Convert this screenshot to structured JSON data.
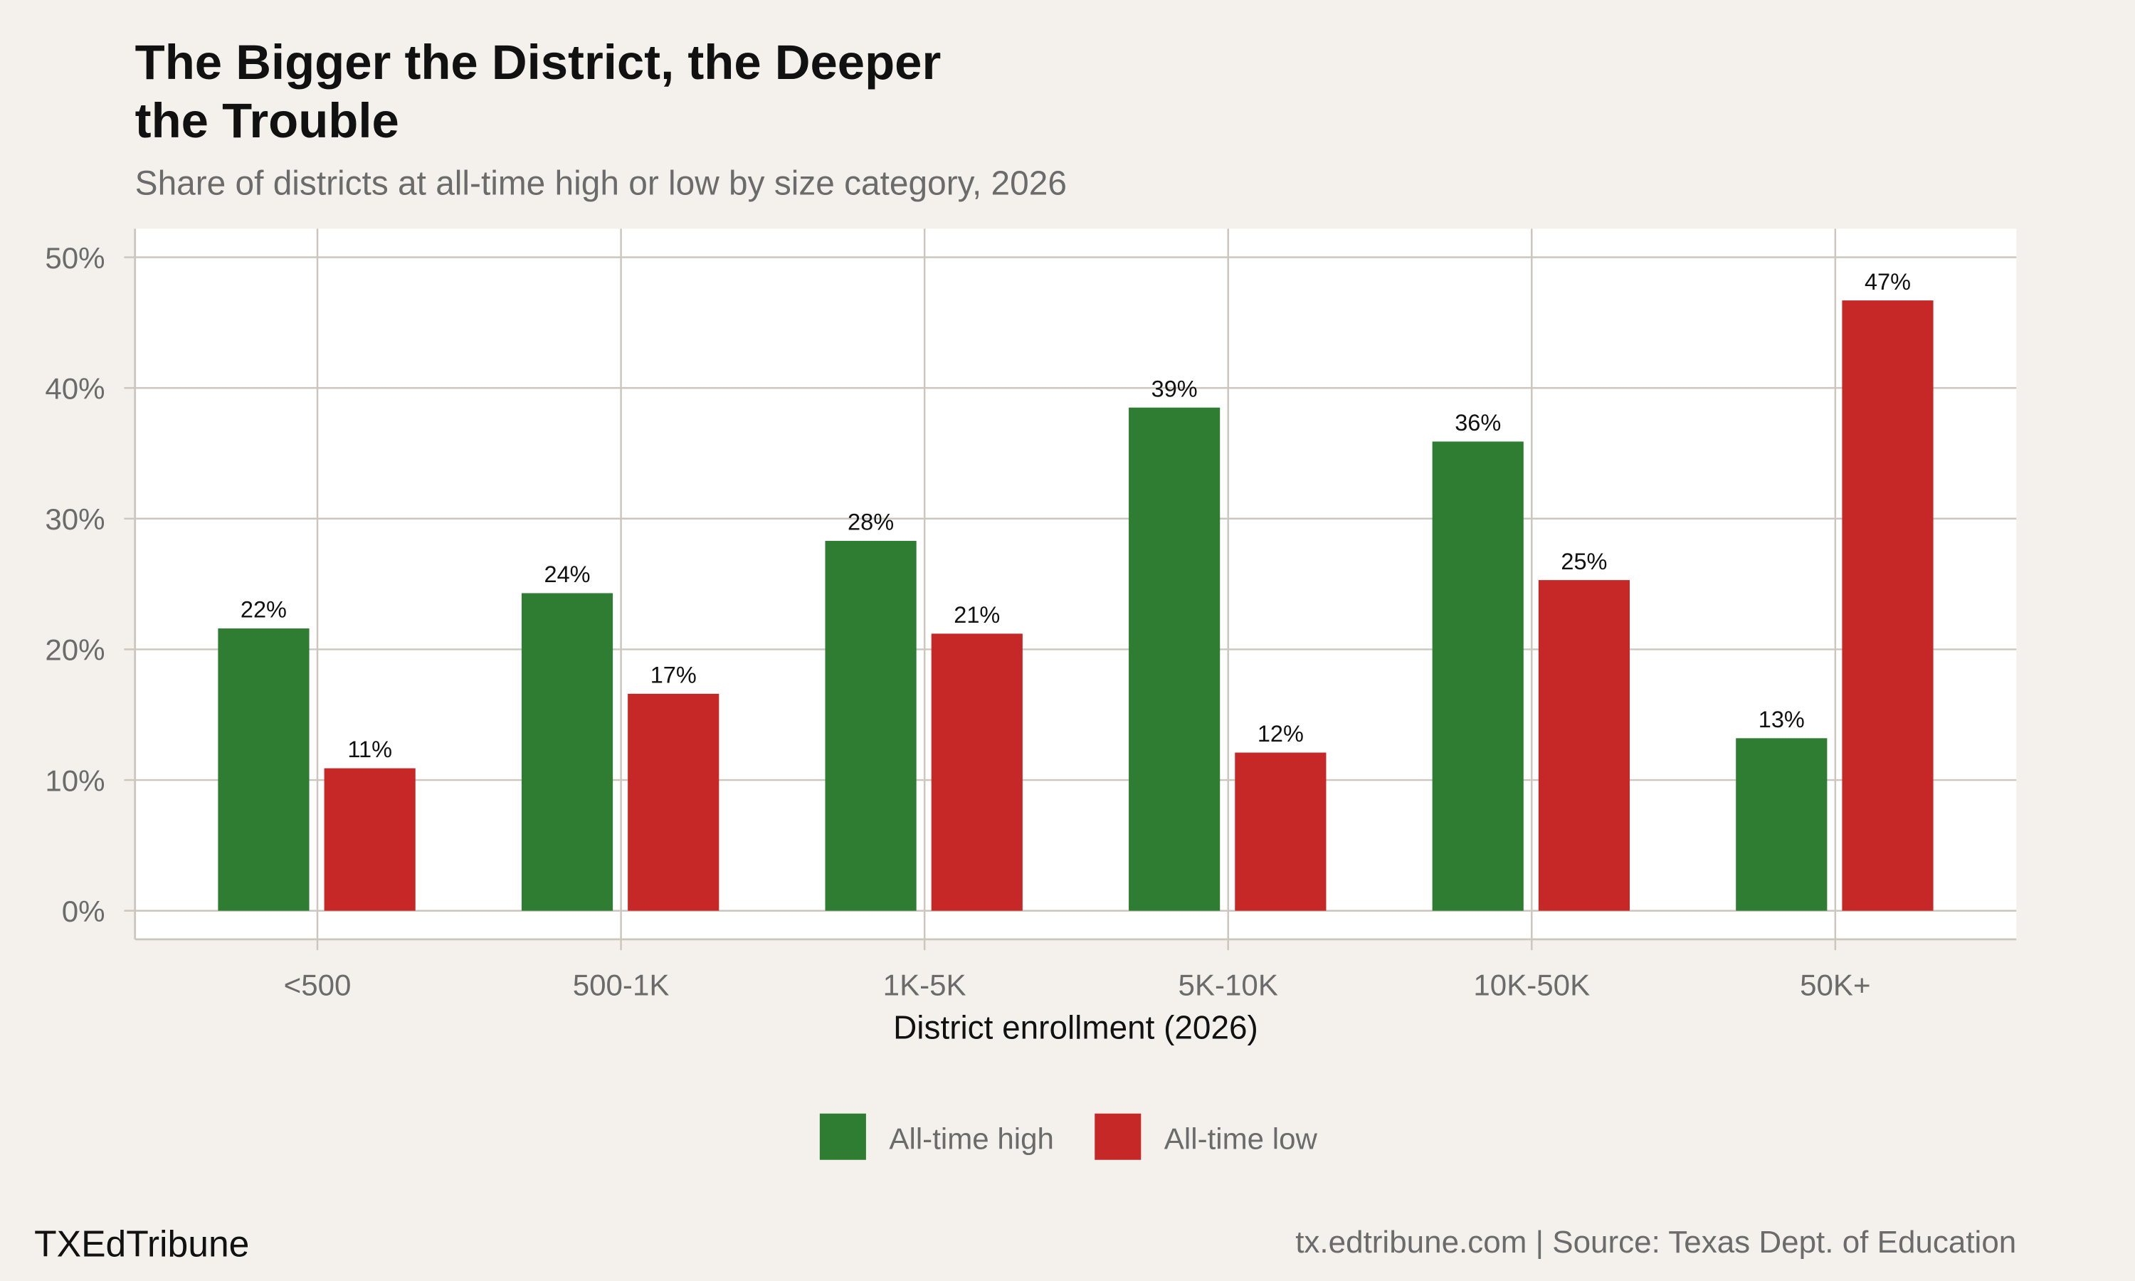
{
  "title_line1": "The Bigger the District, the Deeper",
  "title_line2": "the Trouble",
  "subtitle": "Share of districts at all-time high or low by size category, 2026",
  "brand": "TXEdTribune",
  "footer_source": "tx.edtribune.com | Source: Texas Dept. of Education",
  "colors": {
    "background": "#F4F1EC",
    "panel": "#FFFFFF",
    "grid": "#CCC6BE",
    "high": "#2E7D32",
    "low": "#C62828"
  },
  "chart_data": {
    "type": "bar",
    "title": "The Bigger the District, the Deeper the Trouble",
    "subtitle": "Share of districts at all-time high or low by size category, 2026",
    "xlabel": "District enrollment (2026)",
    "ylabel": "",
    "categories": [
      "<500",
      "500-1K",
      "1K-5K",
      "5K-10K",
      "10K-50K",
      "50K+"
    ],
    "series": [
      {
        "name": "All-time high",
        "color": "#2E7D32",
        "values": [
          21.6,
          24.3,
          28.3,
          38.5,
          35.9,
          13.2
        ],
        "labels": [
          "22%",
          "24%",
          "28%",
          "39%",
          "36%",
          "13%"
        ]
      },
      {
        "name": "All-time low",
        "color": "#C62828",
        "values": [
          10.9,
          16.6,
          21.2,
          12.1,
          25.3,
          46.7
        ],
        "labels": [
          "11%",
          "17%",
          "21%",
          "12%",
          "25%",
          "47%"
        ]
      }
    ],
    "ylim": [
      0,
      50
    ],
    "yticks": [
      0,
      10,
      20,
      30,
      40,
      50
    ],
    "ytick_labels": [
      "0%",
      "10%",
      "20%",
      "30%",
      "40%",
      "50%"
    ],
    "grid": true,
    "legend_position": "bottom"
  }
}
